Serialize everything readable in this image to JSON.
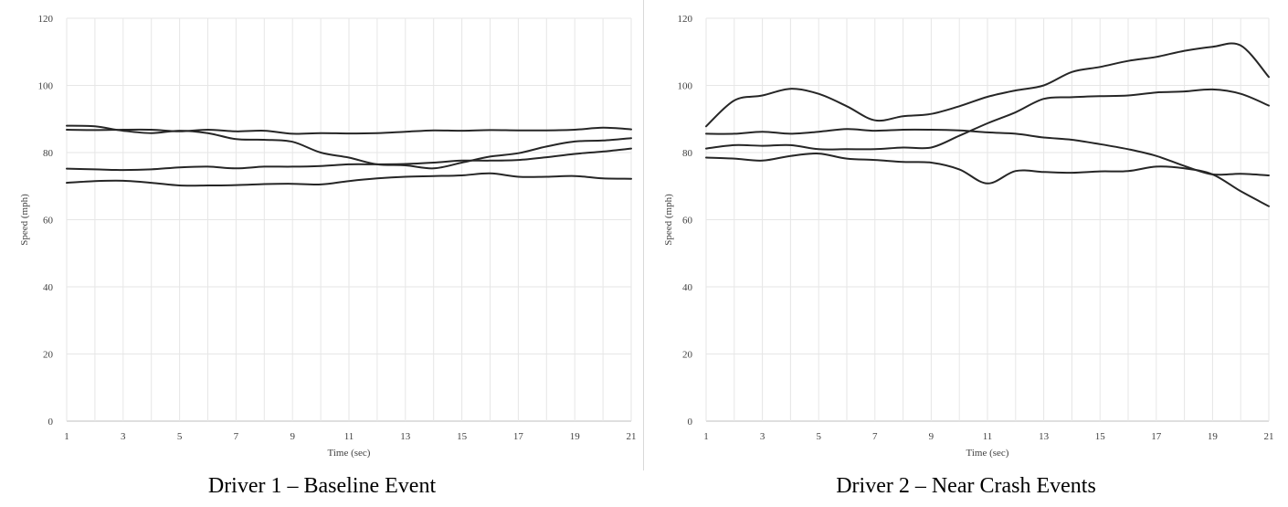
{
  "charts": [
    {
      "caption": "Driver 1 – Baseline Event",
      "chart_data": {
        "type": "line",
        "xlabel": "Time (sec)",
        "ylabel": "Speed (mph)",
        "xlim": [
          1,
          21
        ],
        "ylim": [
          0,
          120
        ],
        "x_ticks": [
          1,
          3,
          5,
          7,
          9,
          11,
          13,
          15,
          17,
          19,
          21
        ],
        "y_ticks": [
          0,
          20,
          40,
          60,
          80,
          100,
          120
        ],
        "grid": "vertical and horizontal",
        "line_color": "#262626",
        "x": [
          1,
          2,
          3,
          4,
          5,
          6,
          7,
          8,
          9,
          10,
          11,
          12,
          13,
          14,
          15,
          16,
          17,
          18,
          19,
          20,
          21
        ],
        "series": [
          {
            "values": [
              88.0,
              87.8,
              86.5,
              85.8,
              86.5,
              85.8,
              84.0,
              83.8,
              83.2,
              80.0,
              78.5,
              76.5,
              76.2,
              75.3,
              77.0,
              78.8,
              79.8,
              81.8,
              83.3,
              83.6,
              84.3
            ]
          },
          {
            "values": [
              86.8,
              86.7,
              86.8,
              86.8,
              86.3,
              86.8,
              86.3,
              86.5,
              85.6,
              85.8,
              85.7,
              85.8,
              86.2,
              86.6,
              86.5,
              86.7,
              86.6,
              86.6,
              86.8,
              87.4,
              86.9
            ]
          },
          {
            "values": [
              75.2,
              75.0,
              74.8,
              75.0,
              75.6,
              75.8,
              75.3,
              75.8,
              75.8,
              76.0,
              76.5,
              76.5,
              76.6,
              77.0,
              77.6,
              77.6,
              77.8,
              78.6,
              79.6,
              80.3,
              81.2
            ]
          },
          {
            "values": [
              71.0,
              71.5,
              71.6,
              71.0,
              70.2,
              70.2,
              70.3,
              70.6,
              70.7,
              70.5,
              71.5,
              72.3,
              72.8,
              73.0,
              73.2,
              73.8,
              72.8,
              72.8,
              73.0,
              72.3,
              72.2
            ]
          }
        ]
      }
    },
    {
      "caption": "Driver 2 – Near Crash Events",
      "chart_data": {
        "type": "line",
        "xlabel": "Time (sec)",
        "ylabel": "Speed (mph)",
        "xlim": [
          1,
          21
        ],
        "ylim": [
          0,
          120
        ],
        "x_ticks": [
          1,
          3,
          5,
          7,
          9,
          11,
          13,
          15,
          17,
          19,
          21
        ],
        "y_ticks": [
          0,
          20,
          40,
          60,
          80,
          100,
          120
        ],
        "grid": "vertical and horizontal",
        "line_color": "#262626",
        "x": [
          1,
          2,
          3,
          4,
          5,
          6,
          7,
          8,
          9,
          10,
          11,
          12,
          13,
          14,
          15,
          16,
          17,
          18,
          19,
          20,
          21
        ],
        "series": [
          {
            "values": [
              87.8,
              95.5,
              97.0,
              99.0,
              97.5,
              93.8,
              89.6,
              90.8,
              91.5,
              93.8,
              96.6,
              98.5,
              100.0,
              104.0,
              105.5,
              107.3,
              108.5,
              110.3,
              111.5,
              111.9,
              102.5
            ]
          },
          {
            "values": [
              85.6,
              85.6,
              86.2,
              85.6,
              86.2,
              87.0,
              86.5,
              86.8,
              86.8,
              86.6,
              86.0,
              85.6,
              84.5,
              83.8,
              82.5,
              81.0,
              79.0,
              76.0,
              73.5,
              73.7,
              73.2
            ]
          },
          {
            "values": [
              81.2,
              82.2,
              82.0,
              82.2,
              81.0,
              81.0,
              81.0,
              81.5,
              81.5,
              85.0,
              88.7,
              92.0,
              96.0,
              96.5,
              96.8,
              97.0,
              97.9,
              98.2,
              98.8,
              97.5,
              94.0
            ]
          },
          {
            "values": [
              78.5,
              78.2,
              77.6,
              79.0,
              79.7,
              78.2,
              77.8,
              77.2,
              77.0,
              75.0,
              70.8,
              74.5,
              74.2,
              74.0,
              74.4,
              74.5,
              75.8,
              75.3,
              73.5,
              68.5,
              64.0
            ]
          }
        ]
      }
    }
  ]
}
